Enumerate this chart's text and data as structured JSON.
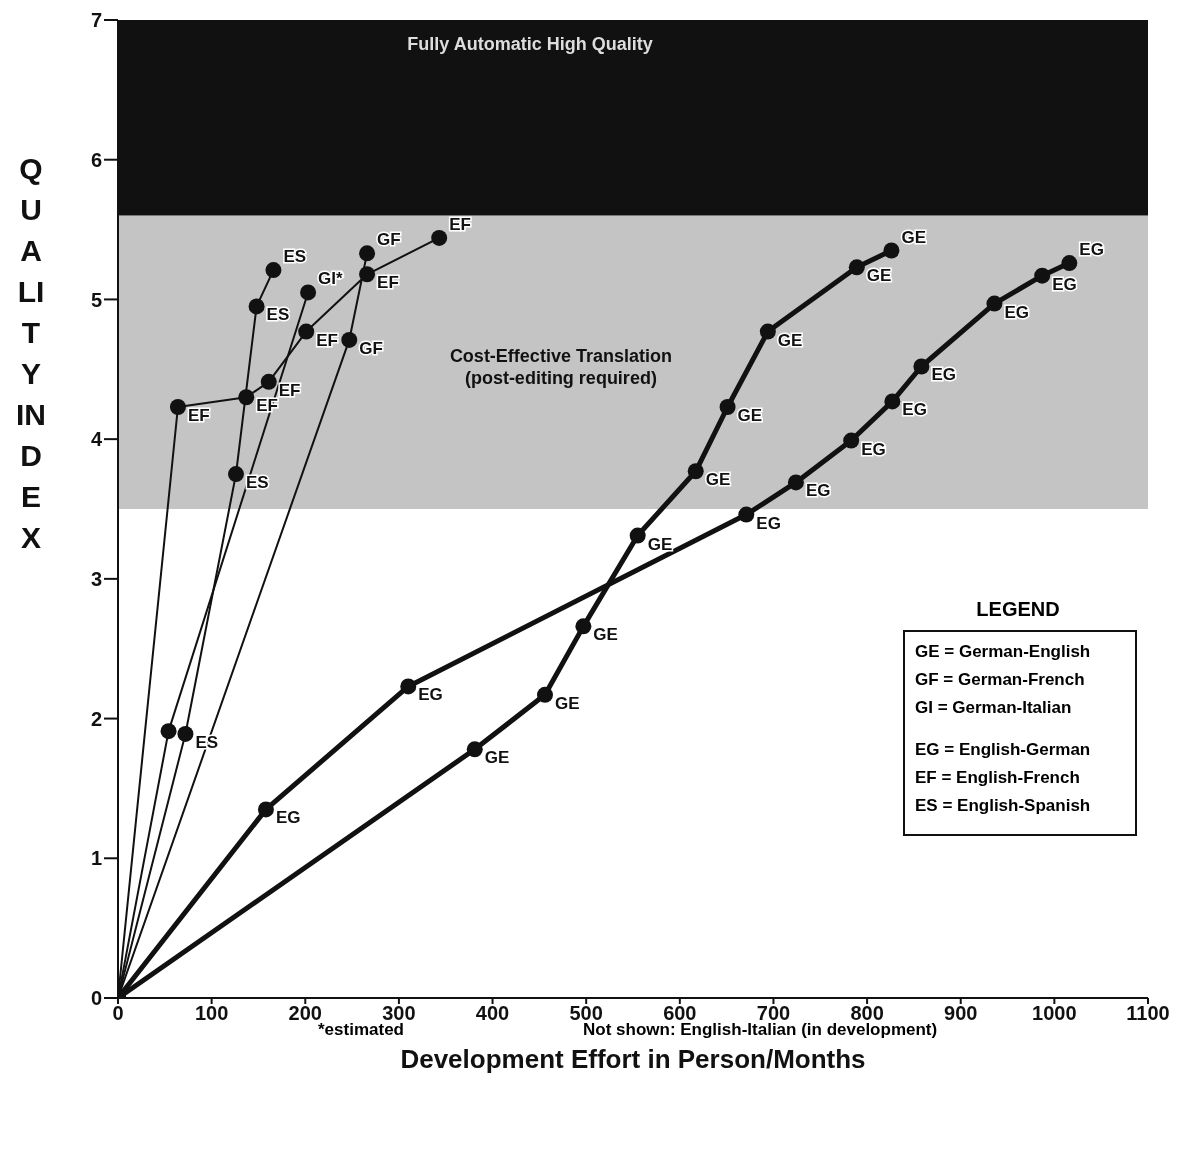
{
  "chart_data": {
    "type": "line",
    "xlabel": "Development Effort in Person/Months",
    "ylabel": "QUALITY INDEX",
    "xlim": [
      0,
      1100
    ],
    "xticks": [
      0,
      100,
      200,
      300,
      400,
      500,
      600,
      700,
      800,
      900,
      1000,
      1100
    ],
    "ylim": [
      0,
      7
    ],
    "yticks": [
      0,
      1,
      2,
      3,
      4,
      5,
      6,
      7
    ],
    "marker": "circle",
    "line_style": "solid",
    "bands": [
      {
        "axis": "y",
        "from": 3.5,
        "to": 5.6,
        "label": "Cost-Effective Translation\n(post-editing required)",
        "color": "#c4c4c4"
      },
      {
        "axis": "y",
        "from": 5.6,
        "to": 7,
        "label": "Fully Automatic High Quality",
        "color": "#111111"
      }
    ],
    "series": [
      {
        "color": "#111111",
        "x": [
          0,
          381,
          456,
          497,
          555,
          617,
          651,
          694,
          789,
          826
        ],
        "values": [
          0,
          1.78,
          2.17,
          2.66,
          3.31,
          3.77,
          4.23,
          4.77,
          5.23,
          5.35
        ],
        "value_labels": [
          null,
          "GE",
          "GE",
          "GE",
          "GE",
          "GE",
          "GE",
          "GE",
          "GE",
          "GE"
        ]
      },
      {
        "color": "#111111",
        "x": [
          0,
          158,
          310,
          671,
          724,
          783,
          827,
          858,
          936,
          987,
          1016
        ],
        "values": [
          0,
          1.35,
          2.23,
          3.46,
          3.69,
          3.99,
          4.27,
          4.52,
          4.97,
          5.17,
          5.26
        ],
        "value_labels": [
          null,
          "EG",
          "EG",
          "EG",
          "EG",
          "EG",
          "EG",
          "EG",
          "EG",
          "EG",
          "EG"
        ]
      },
      {
        "color": "#111111",
        "x": [
          0,
          64,
          137,
          161,
          201,
          266,
          343
        ],
        "values": [
          0,
          4.23,
          4.3,
          4.41,
          4.77,
          5.18,
          5.44
        ],
        "value_labels": [
          null,
          "EF",
          "EF",
          "EF",
          "EF",
          "EF",
          "EF"
        ]
      },
      {
        "color": "#111111",
        "x": [
          0,
          72,
          126,
          148,
          166
        ],
        "values": [
          0,
          1.89,
          3.75,
          4.95,
          5.21
        ],
        "value_labels": [
          null,
          "ES",
          "ES",
          "ES",
          "ES"
        ]
      },
      {
        "color": "#111111",
        "x": [
          0,
          54,
          203
        ],
        "values": [
          0,
          1.91,
          5.05
        ],
        "value_labels": [
          null,
          null,
          "GI*"
        ]
      },
      {
        "color": "#111111",
        "x": [
          0,
          247,
          266
        ],
        "values": [
          0,
          4.71,
          5.33
        ],
        "value_labels": [
          null,
          "GF",
          "GF"
        ]
      }
    ],
    "annotations": [
      "LEGEND",
      "GE = German-English",
      "GF = German-French",
      "GI = German-Italian",
      "EG = English-German",
      "EF = English-French",
      "ES = English-Spanish",
      "*estimated",
      "Not shown: English-Italian (in development)"
    ]
  }
}
